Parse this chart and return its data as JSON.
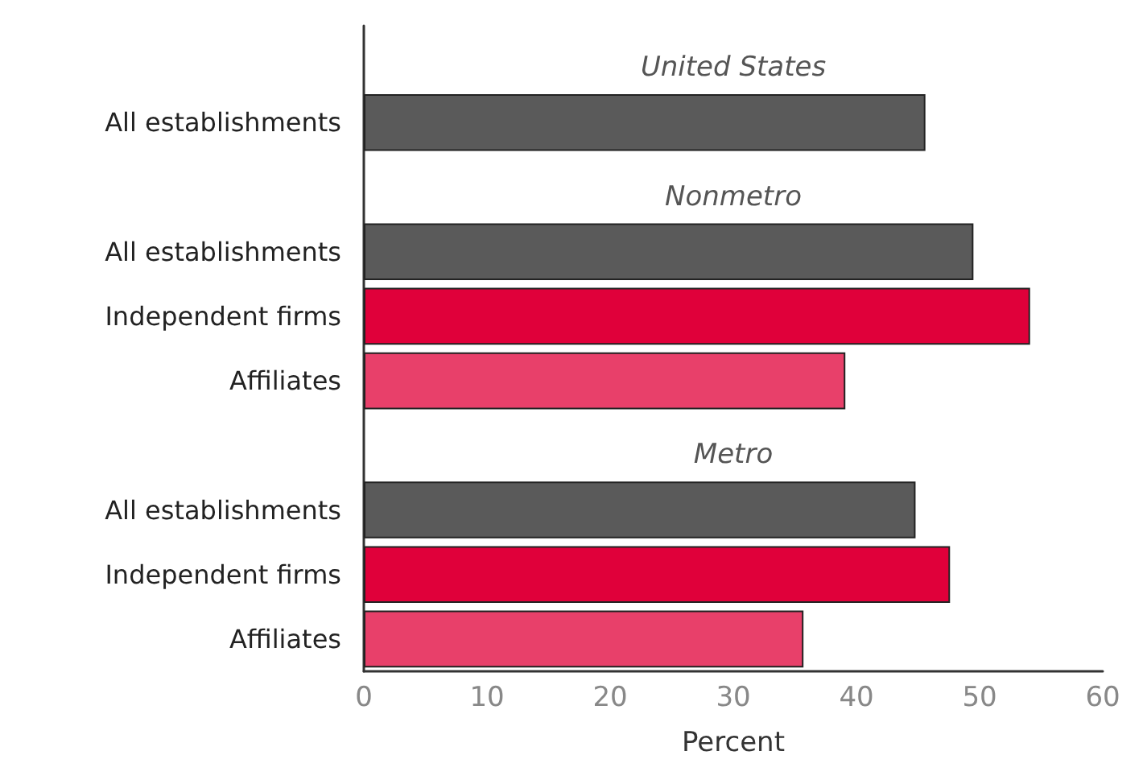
{
  "chart_data": {
    "type": "bar",
    "orientation": "horizontal",
    "xlabel": "Percent",
    "categories": [
      null,
      "All establishments",
      null,
      "All establishments",
      "Independent firms",
      "Affiliates",
      null,
      "All establishments",
      "Independent firms",
      "Affiliates"
    ],
    "values": [
      null,
      45.6,
      null,
      49.5,
      54.1,
      39.1,
      null,
      44.8,
      47.6,
      35.7
    ],
    "colors": [
      null,
      "#5a5a5a",
      null,
      "#5a5a5a",
      "#e0003a",
      "#e8406a",
      null,
      "#5a5a5a",
      "#e0003a",
      "#e8406a"
    ],
    "xlim": [
      0,
      60
    ],
    "xticks": [
      0,
      10,
      20,
      30,
      40,
      50,
      60
    ],
    "grid": false,
    "annotations": [
      "United States",
      "Nonmetro",
      "Metro"
    ]
  }
}
